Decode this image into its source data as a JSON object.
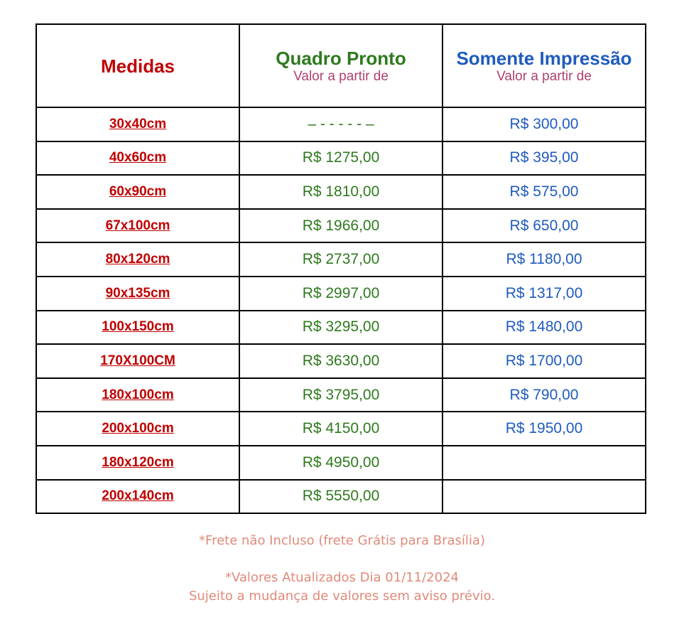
{
  "table": {
    "headers": {
      "medidas": "Medidas",
      "quadro_title": "Quadro Pronto",
      "quadro_sub": "Valor a partir de",
      "somente_title": "Somente Impressão",
      "somente_sub": "Valor a partir de"
    },
    "rows": [
      {
        "size": "30x40cm",
        "quadro": "– - - - - - –",
        "somente": "R$ 300,00"
      },
      {
        "size": "40x60cm",
        "quadro": "R$ 1275,00",
        "somente": "R$ 395,00"
      },
      {
        "size": "60x90cm",
        "quadro": "R$ 1810,00",
        "somente": "R$ 575,00"
      },
      {
        "size": "67x100cm",
        "quadro": "R$ 1966,00",
        "somente": "R$ 650,00"
      },
      {
        "size": "80x120cm",
        "quadro": "R$ 2737,00",
        "somente": "R$ 1180,00"
      },
      {
        "size": "90x135cm",
        "quadro": "R$ 2997,00",
        "somente": "R$ 1317,00"
      },
      {
        "size": "100x150cm",
        "quadro": "R$ 3295,00",
        "somente": "R$ 1480,00"
      },
      {
        "size": "170X100CM",
        "quadro": "R$ 3630,00",
        "somente": "R$ 1700,00"
      },
      {
        "size": "180x100cm",
        "quadro": "R$ 3795,00",
        "somente": "R$ 790,00"
      },
      {
        "size": "200x100cm",
        "quadro": "R$ 4150,00",
        "somente": "R$ 1950,00"
      },
      {
        "size": "180x120cm",
        "quadro": "R$ 4950,00",
        "somente": ""
      },
      {
        "size": "200x140cm",
        "quadro": "R$ 5550,00",
        "somente": ""
      }
    ]
  },
  "notes": {
    "frete": "*Frete não Incluso (frete Grátis para Brasília)",
    "atualizados": "*Valores Atualizados Dia 01/11/2024",
    "sujeito": "Sujeito a mudança de valores sem aviso prévio."
  },
  "colors": {
    "size_link": "#c00000",
    "quadro": "#2e7a1e",
    "somente": "#1f5bbf",
    "subheader": "#b04070",
    "notes": "#e08a7a"
  }
}
